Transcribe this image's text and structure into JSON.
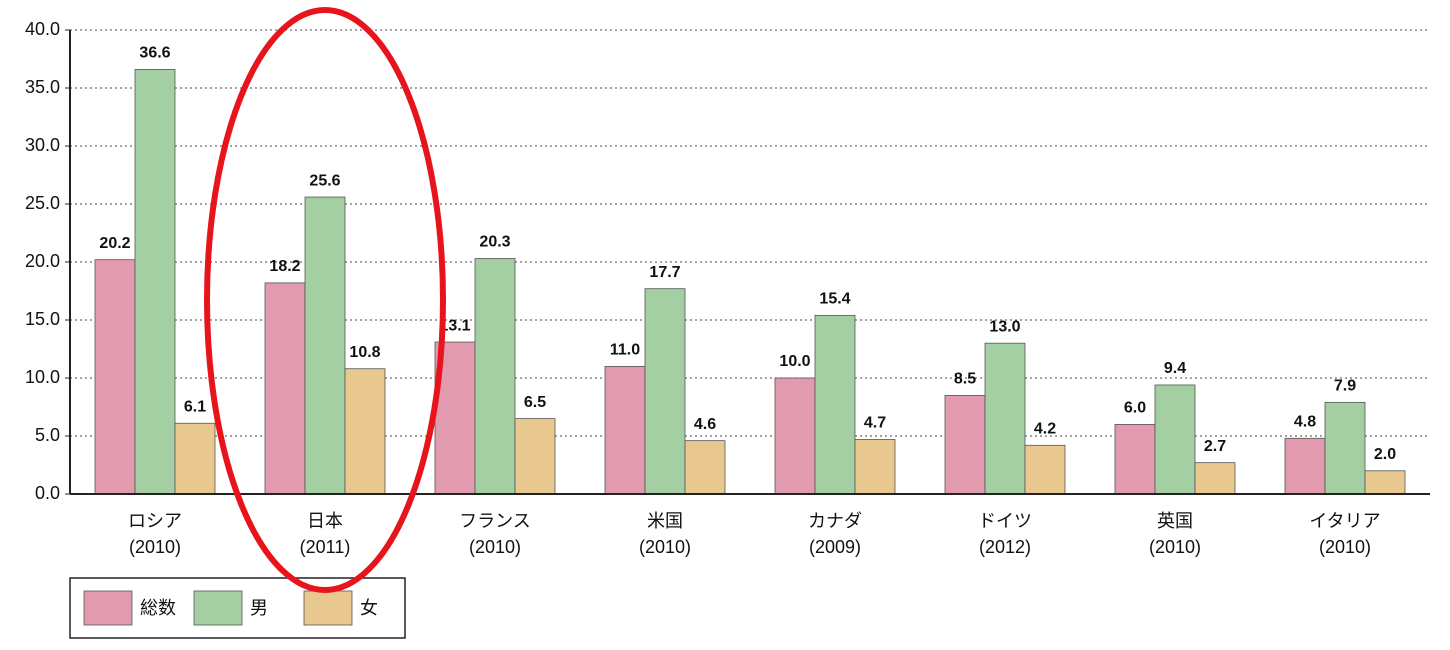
{
  "chart_data": {
    "type": "bar",
    "categories": [
      "ロシア\n(2010)",
      "日本\n(2011)",
      "フランス\n(2010)",
      "米国\n(2010)",
      "カナダ\n(2009)",
      "ドイツ\n(2012)",
      "英国\n(2010)",
      "イタリア\n(2010)"
    ],
    "series": [
      {
        "name": "総数",
        "color": "#e29aae",
        "values": [
          20.2,
          18.2,
          13.1,
          11.0,
          10.0,
          8.5,
          6.0,
          4.8
        ],
        "value_labels": [
          "20.2",
          "18.2",
          "13.1",
          "11.0",
          "10.0",
          "8.5",
          "6.0",
          "4.8"
        ]
      },
      {
        "name": "男",
        "color": "#a3cfa3",
        "values": [
          36.6,
          25.6,
          20.3,
          17.7,
          15.4,
          13.0,
          9.4,
          7.9
        ],
        "value_labels": [
          "36.6",
          "25.6",
          "20.3",
          "17.7",
          "15.4",
          "13.0",
          "9.4",
          "7.9"
        ]
      },
      {
        "name": "女",
        "color": "#e8c88e",
        "values": [
          6.1,
          10.8,
          6.5,
          4.6,
          4.7,
          4.2,
          2.7,
          2.0
        ],
        "value_labels": [
          "6.1",
          "10.8",
          "6.5",
          "4.6",
          "4.7",
          "4.2",
          "2.7",
          "2.0"
        ]
      }
    ],
    "ylim": [
      0,
      40
    ],
    "yticks": [
      {
        "value": 0,
        "label": "0.0"
      },
      {
        "value": 5,
        "label": "5.0"
      },
      {
        "value": 10,
        "label": "10.0"
      },
      {
        "value": 15,
        "label": "15.0"
      },
      {
        "value": 20,
        "label": "20.0"
      },
      {
        "value": 25,
        "label": "25.0"
      },
      {
        "value": 30,
        "label": "30.0"
      },
      {
        "value": 35,
        "label": "35.0"
      },
      {
        "value": 40,
        "label": "40.0"
      }
    ],
    "grid": true
  }
}
